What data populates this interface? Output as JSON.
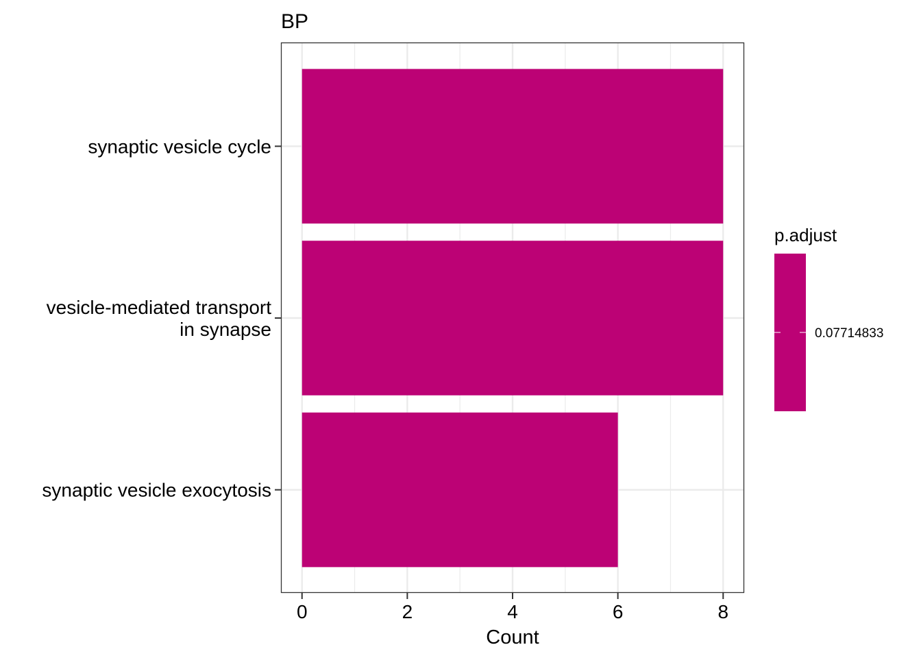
{
  "chart_data": {
    "type": "bar",
    "orientation": "horizontal",
    "title": "BP",
    "xlabel": "Count",
    "ylabel": "",
    "categories": [
      [
        "synaptic vesicle cycle"
      ],
      [
        "vesicle-mediated transport",
        "in synapse"
      ],
      [
        "synaptic vesicle exocytosis"
      ]
    ],
    "values": [
      8,
      8,
      6
    ],
    "xlim": [
      -0.4,
      8.4
    ],
    "xticks": [
      "0",
      "2",
      "4",
      "6",
      "8"
    ],
    "xtick_values": [
      0,
      2,
      4,
      6,
      8
    ],
    "grid": true,
    "bar_color": "#BC0275",
    "legend": {
      "title": "p.adjust",
      "label": "0.07714833",
      "color": "#BC0275",
      "placement": "right"
    }
  }
}
